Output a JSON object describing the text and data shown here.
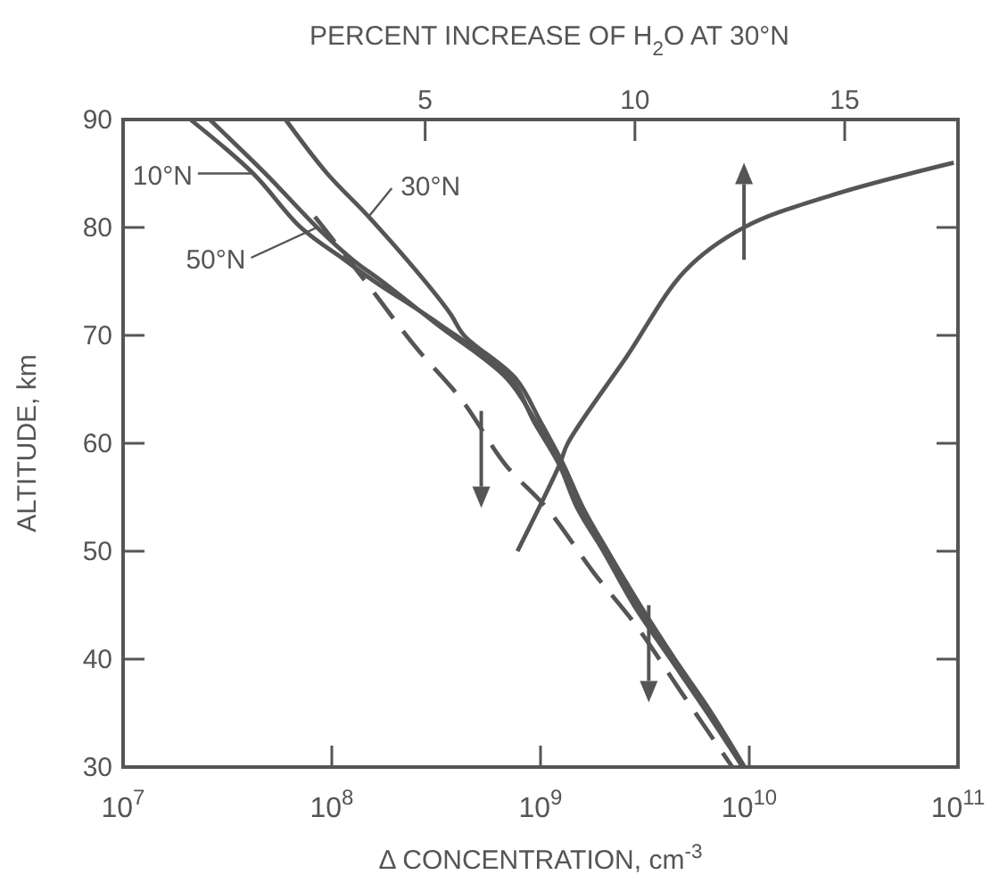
{
  "chart_data": {
    "type": "line",
    "xlabel": "Δ CONCENTRATION, cm$^{-3}$",
    "ylabel": "ALTITUDE, km",
    "x2label": "PERCENT INCREASE OF H$_{2}$O AT 30°N",
    "log": "x",
    "xlim": [
      10000000.0,
      100000000000.0
    ],
    "xticks": [
      {
        "value": 10000000.0,
        "label": "10$^{7}$"
      },
      {
        "value": 100000000.0,
        "label": "10$^{8}$"
      },
      {
        "value": 1000000000.0,
        "label": "10$^{9}$"
      },
      {
        "value": 10000000000.0,
        "label": "10$^{10}$"
      },
      {
        "value": 100000000000.0,
        "label": "10$^{11}$"
      }
    ],
    "x2lim": [
      -2.2,
      17.7
    ],
    "x2ticks": [
      5,
      10,
      15
    ],
    "ylim": [
      30,
      90
    ],
    "yticks": [
      30,
      40,
      50,
      60,
      70,
      80,
      90
    ],
    "grid": false,
    "legend": "top left",
    "series": [
      {
        "name": "10°N",
        "color": "#555555",
        "x": [
          21000000.0,
          42000000.0,
          71000000.0,
          115000000.0,
          160000000.0,
          330000000.0,
          720000000.0,
          930000000.0,
          1230000000.0,
          1500000000.0,
          2000000000.0,
          2800000000.0,
          4200000000.0,
          6300000000.0,
          9300000000.0
        ],
        "values": [
          90,
          85,
          80,
          77,
          75,
          71,
          66,
          62,
          58,
          54,
          50,
          45,
          40,
          35,
          30
        ]
      },
      {
        "name": "30°N",
        "color": "#555555",
        "x": [
          60000000.0,
          95000000.0,
          150000000.0,
          280000000.0,
          370000000.0,
          430000000.0,
          760000000.0,
          1000000000.0,
          1290000000.0,
          1600000000.0,
          2100000000.0,
          3000000000.0,
          4400000000.0,
          6600000000.0,
          9500000000.0
        ],
        "values": [
          90,
          85,
          81,
          75,
          72,
          70,
          66,
          62,
          58,
          54,
          50,
          45,
          40,
          35,
          30
        ]
      },
      {
        "name": "50°N",
        "color": "#555555",
        "x": [
          26000000.0,
          48000000.0,
          85000000.0,
          126000000.0,
          174000000.0,
          320000000.0,
          690000000.0,
          950000000.0,
          1260000000.0,
          1550000000.0,
          2050000000.0,
          2900000000.0,
          4300000000.0,
          6500000000.0,
          9300000000.0
        ],
        "values": [
          90,
          85,
          80,
          77,
          75,
          71,
          66,
          62,
          58,
          54,
          50,
          45,
          40,
          35,
          30
        ]
      },
      {
        "color": "#555555",
        "line_style": "dashed",
        "x": [
          83000000.0,
          145000000.0,
          250000000.0,
          420000000.0,
          680000000.0,
          1070000000.0,
          1800000000.0,
          2900000000.0,
          4700000000.0,
          8300000000.0
        ],
        "values": [
          81,
          75,
          69,
          64,
          58,
          54,
          48,
          43,
          37,
          30
        ]
      },
      {
        "color": "#555555",
        "axis": "x2",
        "x": [
          7.2,
          8.2,
          8.4,
          9.8,
          11.2,
          12.6,
          14.7,
          17.6
        ],
        "values": [
          50,
          58,
          60,
          68,
          76,
          80,
          83,
          86
        ]
      }
    ]
  }
}
